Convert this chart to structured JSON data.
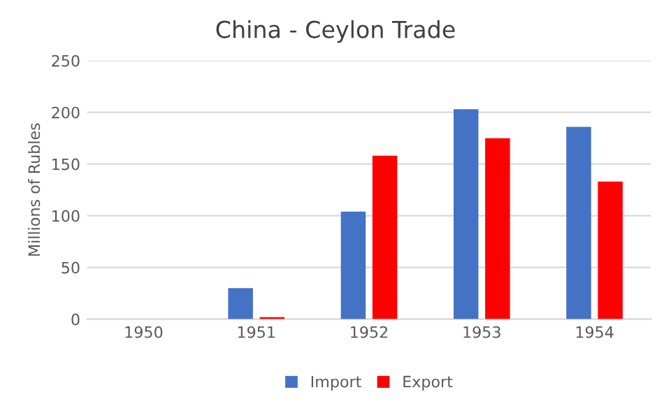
{
  "chart_data": {
    "type": "bar",
    "title": "China - Ceylon Trade",
    "ylabel": "Millions of Rubles",
    "categories": [
      "1950",
      "1951",
      "1952",
      "1953",
      "1954"
    ],
    "series": [
      {
        "name": "Import",
        "color": "#4472c4",
        "values": [
          0,
          30,
          104,
          203,
          186
        ]
      },
      {
        "name": "Export",
        "color": "#ff0000",
        "values": [
          0,
          2,
          158,
          175,
          133
        ]
      }
    ],
    "ylim": [
      0,
      250
    ],
    "yticks": [
      0,
      50,
      100,
      150,
      200,
      250
    ],
    "grid": "y",
    "legend": "bottom"
  }
}
